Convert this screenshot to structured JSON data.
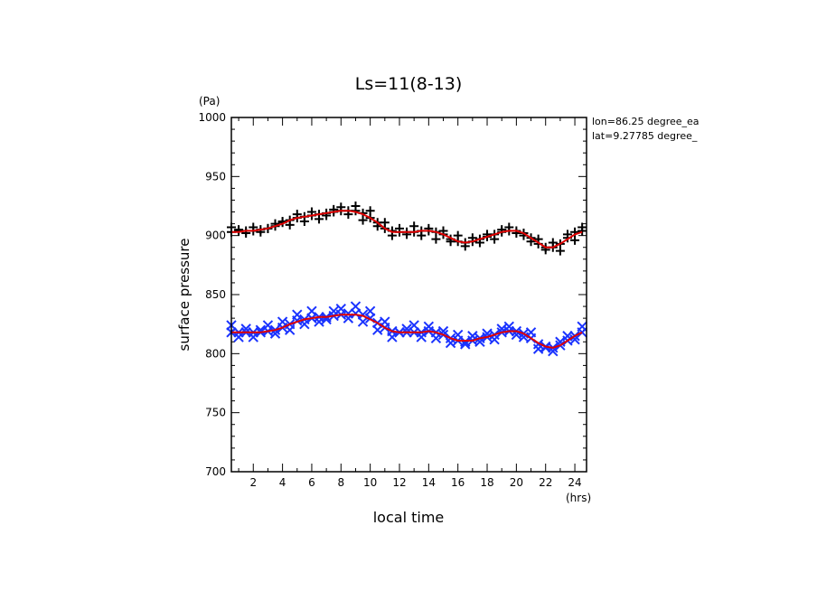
{
  "chart_data": {
    "type": "scatter",
    "title": "Ls=11(8-13)",
    "xlabel": "local time",
    "ylabel": "surface pressure",
    "xunit": "(hrs)",
    "yunit": "(Pa)",
    "annotations": [
      "lon=86.25 degree_ea",
      "lat=9.27785 degree_"
    ],
    "xlim": [
      0.5,
      24.8
    ],
    "ylim": [
      700,
      1000
    ],
    "xticks": [
      2,
      4,
      6,
      8,
      10,
      12,
      14,
      16,
      18,
      20,
      22,
      24
    ],
    "yticks": [
      700,
      750,
      800,
      850,
      900,
      950,
      1000
    ],
    "grid": false,
    "x": [
      0.5,
      1,
      1.5,
      2,
      2.5,
      3,
      3.5,
      4,
      4.5,
      5,
      5.5,
      6,
      6.5,
      7,
      7.5,
      8,
      8.5,
      9,
      9.5,
      10,
      10.5,
      11,
      11.5,
      12,
      12.5,
      13,
      13.5,
      14,
      14.5,
      15,
      15.5,
      16,
      16.5,
      17,
      17.5,
      18,
      18.5,
      19,
      19.5,
      20,
      20.5,
      21,
      21.5,
      22,
      22.5,
      23,
      23.5,
      24,
      24.5
    ],
    "series": [
      {
        "marker": "+",
        "color": "#000000",
        "values": [
          903,
          904,
          904,
          904,
          905,
          906,
          908,
          911,
          913,
          915,
          916,
          917,
          918,
          919,
          920,
          921,
          921,
          921,
          919,
          915,
          911,
          906,
          904,
          903,
          903,
          903,
          904,
          904,
          903,
          901,
          897,
          895,
          894,
          895,
          897,
          899,
          901,
          903,
          904,
          904,
          902,
          898,
          893,
          890,
          890,
          893,
          898,
          903,
          904
        ]
      },
      {
        "marker": "+",
        "color": "#000000",
        "values": [
          907,
          905,
          902,
          907,
          903,
          906,
          910,
          912,
          909,
          918,
          912,
          920,
          914,
          917,
          922,
          924,
          918,
          925,
          913,
          921,
          908,
          911,
          900,
          906,
          901,
          908,
          900,
          906,
          897,
          904,
          895,
          900,
          891,
          898,
          894,
          901,
          897,
          905,
          907,
          902,
          900,
          895,
          897,
          888,
          894,
          887,
          901,
          896,
          907
        ]
      },
      {
        "marker": "x",
        "color": "#1a33ff",
        "values": [
          818,
          818,
          818,
          818,
          818,
          819,
          820,
          822,
          825,
          828,
          829,
          830,
          831,
          831,
          832,
          833,
          834,
          834,
          833,
          830,
          826,
          822,
          819,
          818,
          818,
          818,
          818,
          819,
          818,
          816,
          813,
          811,
          810,
          811,
          813,
          814,
          816,
          818,
          819,
          819,
          817,
          813,
          808,
          805,
          805,
          807,
          811,
          815,
          818
        ]
      },
      {
        "marker": "x",
        "color": "#1a33ff",
        "values": [
          824,
          814,
          821,
          814,
          820,
          824,
          817,
          827,
          820,
          833,
          825,
          836,
          827,
          829,
          836,
          838,
          830,
          840,
          827,
          836,
          820,
          827,
          814,
          818,
          821,
          824,
          814,
          823,
          813,
          819,
          809,
          816,
          808,
          815,
          810,
          817,
          812,
          821,
          823,
          816,
          814,
          818,
          804,
          806,
          802,
          810,
          815,
          812,
          823
        ]
      },
      {
        "marker": "line",
        "color": "#e00000",
        "values": [
          903,
          903,
          904,
          904,
          905,
          906,
          908,
          910,
          913,
          915,
          916,
          917,
          918,
          919,
          920,
          921,
          921,
          920,
          918,
          915,
          911,
          906,
          903,
          903,
          903,
          903,
          904,
          904,
          903,
          901,
          898,
          895,
          894,
          895,
          897,
          899,
          901,
          903,
          904,
          904,
          902,
          898,
          894,
          890,
          890,
          893,
          897,
          901,
          903
        ]
      },
      {
        "marker": "line",
        "color": "#e00000",
        "values": [
          818,
          818,
          818,
          818,
          818,
          819,
          820,
          822,
          825,
          827,
          829,
          830,
          831,
          831,
          832,
          833,
          833,
          833,
          832,
          829,
          826,
          822,
          819,
          818,
          818,
          818,
          818,
          819,
          818,
          816,
          813,
          811,
          811,
          811,
          813,
          814,
          816,
          818,
          819,
          819,
          817,
          813,
          809,
          806,
          805,
          807,
          811,
          815,
          818
        ]
      }
    ]
  }
}
